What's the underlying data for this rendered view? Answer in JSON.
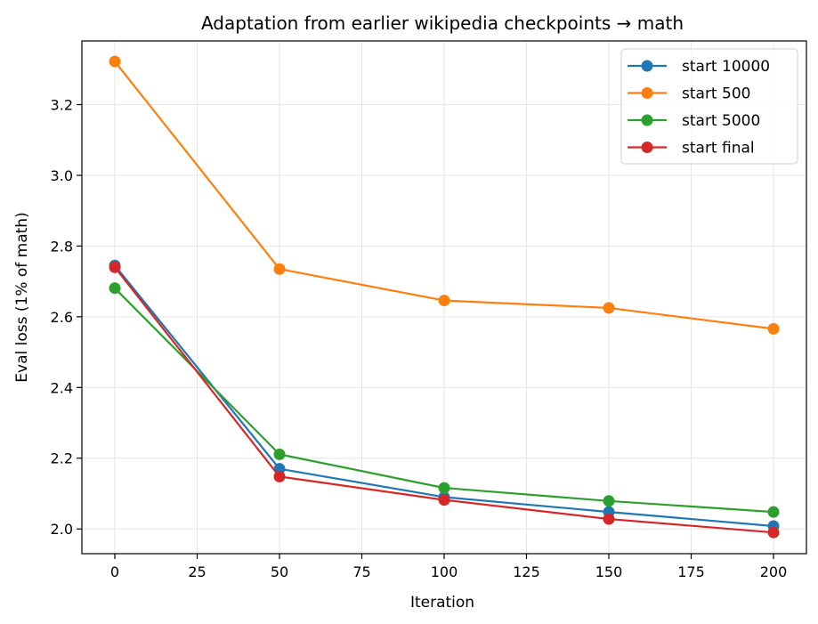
{
  "chart_data": {
    "type": "line",
    "title": "Adaptation from earlier wikipedia checkpoints → math",
    "xlabel": "Iteration",
    "ylabel": "Eval loss (1% of math)",
    "x": [
      0,
      50,
      100,
      150,
      200
    ],
    "xlim": [
      -10,
      210
    ],
    "ylim": [
      1.93,
      3.38
    ],
    "xticks": [
      0,
      25,
      50,
      75,
      100,
      125,
      150,
      175,
      200
    ],
    "yticks": [
      2.0,
      2.2,
      2.4,
      2.6,
      2.8,
      3.0,
      3.2
    ],
    "xtick_labels": [
      "0",
      "25",
      "50",
      "75",
      "100",
      "125",
      "150",
      "175",
      "200"
    ],
    "ytick_labels": [
      "2.0",
      "2.2",
      "2.4",
      "2.6",
      "2.8",
      "3.0",
      "3.2"
    ],
    "grid": true,
    "legend_position": "top-right",
    "series": [
      {
        "name": "start 10000",
        "color": "#1f77b4",
        "values": [
          2.745,
          2.17,
          2.09,
          2.048,
          2.008
        ]
      },
      {
        "name": "start 500",
        "color": "#ff7f0e",
        "values": [
          3.322,
          2.735,
          2.646,
          2.625,
          2.566
        ]
      },
      {
        "name": "start 5000",
        "color": "#2ca02c",
        "values": [
          2.681,
          2.211,
          2.116,
          2.079,
          2.048
        ]
      },
      {
        "name": "start final",
        "color": "#d62728",
        "values": [
          2.74,
          2.148,
          2.082,
          2.028,
          1.99
        ]
      }
    ]
  }
}
